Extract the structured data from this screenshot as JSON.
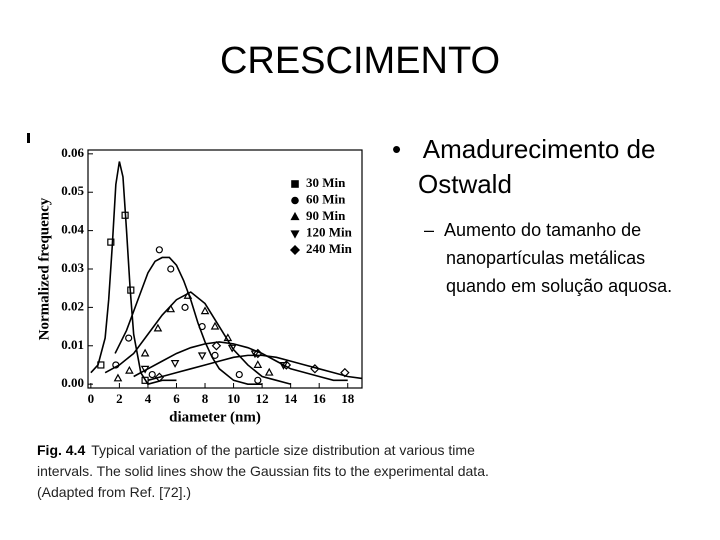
{
  "title": "CRESCIMENTO",
  "bullet": {
    "text": "Amadurecimento de Ostwald",
    "sub": "Aumento do tamanho de nanopartículas metálicas quando em solução aquosa."
  },
  "caption": {
    "label": "Fig. 4.4",
    "text": "Typical variation of the particle size distribution at various time intervals. The solid lines show the Gaussian fits to the experimental data. (Adapted from Ref. [72].)"
  },
  "chart_data": {
    "type": "scatter",
    "x_label": "diameter (nm)",
    "y_label": "Normalized frequency",
    "xlim": [
      -0.2,
      19
    ],
    "xticks": [
      0,
      2,
      4,
      6,
      8,
      10,
      12,
      14,
      16,
      18
    ],
    "ylim": [
      -0.001,
      0.061
    ],
    "yticks": [
      {
        "value": 0,
        "label": "0.00"
      },
      {
        "value": 0.01,
        "label": "0.01"
      },
      {
        "value": 0.02,
        "label": "0.02"
      },
      {
        "value": 0.03,
        "label": "0.03"
      },
      {
        "value": 0.04,
        "label": "0.04"
      },
      {
        "value": 0.05,
        "label": "0.05"
      },
      {
        "value": 0.06,
        "label": "0.06"
      }
    ],
    "grid": false,
    "legend": "upper right",
    "series": [
      {
        "name": "30 Min",
        "color": "#000000",
        "marker": "square",
        "x": [
          0.7,
          1.4,
          2.4,
          2.8,
          3.8
        ],
        "values": [
          0.005,
          0.037,
          0.044,
          0.0245,
          0.001
        ],
        "fit_x": [
          0,
          0.5,
          1,
          1.25,
          1.5,
          1.75,
          2,
          2.25,
          2.5,
          2.75,
          3,
          3.5,
          4,
          5,
          6
        ],
        "fit_values": [
          0.003,
          0.005,
          0.012,
          0.022,
          0.036,
          0.052,
          0.058,
          0.054,
          0.04,
          0.025,
          0.013,
          0.003,
          0,
          0.001,
          0.001
        ]
      },
      {
        "name": "60 Min",
        "color": "#000000",
        "marker": "circle",
        "x": [
          1.75,
          2.65,
          4.3,
          4.8,
          5.6,
          6.6,
          7.8,
          8.7,
          10.4,
          11.7
        ],
        "values": [
          0.005,
          0.012,
          0.0025,
          0.035,
          0.03,
          0.02,
          0.015,
          0.0075,
          0.0025,
          0.001
        ],
        "fit_x": [
          1.7,
          2.5,
          3,
          3.5,
          4,
          4.5,
          5,
          5.5,
          6,
          6.5,
          7,
          7.5,
          8,
          8.5,
          9,
          10,
          11,
          12
        ],
        "fit_values": [
          0.008,
          0.014,
          0.019,
          0.024,
          0.029,
          0.032,
          0.033,
          0.033,
          0.031,
          0.027,
          0.022,
          0.016,
          0.011,
          0.007,
          0.004,
          0.001,
          0,
          0
        ]
      },
      {
        "name": "90 Min",
        "color": "#000000",
        "marker": "triangle-up",
        "x": [
          1.9,
          2.7,
          3.8,
          4.7,
          5.6,
          6.8,
          8,
          8.7,
          9.6,
          11.7,
          12.5
        ],
        "values": [
          0.0015,
          0.0035,
          0.008,
          0.0145,
          0.0195,
          0.023,
          0.019,
          0.015,
          0.012,
          0.005,
          0.003
        ],
        "fit_x": [
          1,
          2,
          3,
          4,
          5,
          6,
          7,
          8,
          9,
          10,
          11,
          12,
          13,
          14
        ],
        "fit_values": [
          0.003,
          0.005,
          0.008,
          0.013,
          0.018,
          0.022,
          0.024,
          0.021,
          0.015,
          0.009,
          0.005,
          0.002,
          0.001,
          0
        ]
      },
      {
        "name": "120 Min",
        "color": "#000000",
        "marker": "triangle-down",
        "x": [
          3.8,
          5.9,
          7.8,
          9.9,
          11.5,
          13.5
        ],
        "values": [
          0.004,
          0.0055,
          0.0075,
          0.0095,
          0.008,
          0.005
        ],
        "fit_x": [
          3,
          4,
          5,
          6,
          7,
          8,
          9,
          10,
          11,
          12,
          13,
          14,
          15,
          16,
          17,
          18
        ],
        "fit_values": [
          0.002,
          0.004,
          0.006,
          0.008,
          0.0095,
          0.0105,
          0.011,
          0.0105,
          0.0095,
          0.008,
          0.006,
          0.004,
          0.003,
          0.002,
          0.001,
          0.001
        ]
      },
      {
        "name": "240 Min",
        "color": "#000000",
        "marker": "diamond",
        "x": [
          4.8,
          8.8,
          11.7,
          13.7,
          15.7,
          17.8
        ],
        "values": [
          0.0018,
          0.01,
          0.008,
          0.005,
          0.004,
          0.003
        ],
        "fit_x": [
          4,
          5,
          6,
          7,
          8,
          9,
          10,
          11,
          12,
          13,
          14,
          15,
          16,
          17,
          18,
          19
        ],
        "fit_values": [
          0.001,
          0.002,
          0.003,
          0.004,
          0.005,
          0.006,
          0.007,
          0.0075,
          0.0075,
          0.007,
          0.006,
          0.005,
          0.004,
          0.003,
          0.002,
          0.0015
        ]
      }
    ]
  }
}
